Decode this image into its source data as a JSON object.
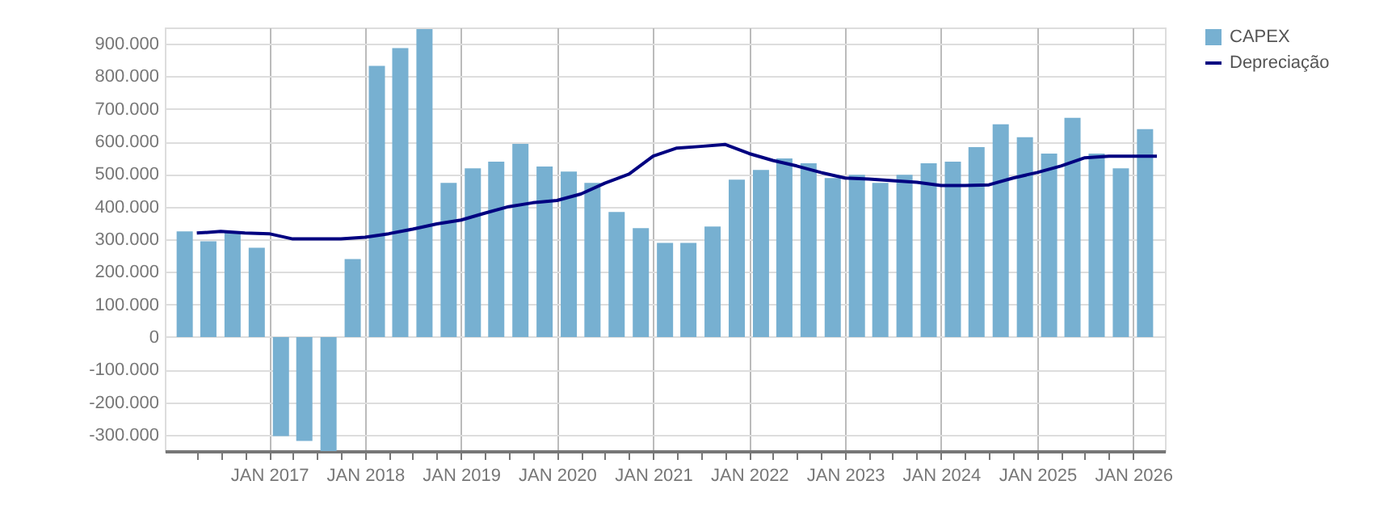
{
  "chart_data": {
    "type": "bar",
    "x": [
      "2016-02-15",
      "2016-05-15",
      "2016-08-15",
      "2016-11-15",
      "2017-02-15",
      "2017-05-15",
      "2017-08-15",
      "2017-11-15",
      "2018-02-15",
      "2018-05-15",
      "2018-08-15",
      "2018-11-15",
      "2019-02-15",
      "2019-05-15",
      "2019-08-15",
      "2019-11-15",
      "2020-02-15",
      "2020-05-15",
      "2020-08-15",
      "2020-11-15",
      "2021-02-15",
      "2021-05-15",
      "2021-08-15",
      "2021-11-15",
      "2022-02-15",
      "2022-05-15",
      "2022-08-15",
      "2022-11-15",
      "2023-02-15",
      "2023-05-15",
      "2023-08-15",
      "2023-11-15",
      "2024-02-15",
      "2024-05-15",
      "2024-08-15",
      "2024-11-15",
      "2025-02-15",
      "2025-05-15",
      "2025-08-15",
      "2025-11-15",
      "2026-02-15"
    ],
    "series": [
      {
        "name": "CAPEX",
        "color": "#77b0d1",
        "values": [
          324000,
          294000,
          325000,
          274000,
          -304000,
          -319000,
          -350000,
          239000,
          832000,
          887000,
          945000,
          473000,
          518000,
          538000,
          593000,
          523000,
          508000,
          473000,
          384000,
          334000,
          289000,
          289000,
          339000,
          483000,
          513000,
          548000,
          533000,
          488000,
          498000,
          473000,
          498000,
          533000,
          538000,
          583000,
          653000,
          613000,
          563000,
          673000,
          563000,
          518000,
          638000
        ]
      },
      {
        "name": "Depreciação",
        "type": "line",
        "color": "#000080",
        "x": [
          "2016-04-01",
          "2016-07-01",
          "2016-10-01",
          "2017-01-01",
          "2017-04-01",
          "2017-07-01",
          "2017-10-01",
          "2018-01-01",
          "2018-04-01",
          "2018-07-01",
          "2018-10-01",
          "2019-01-01",
          "2019-04-01",
          "2019-07-01",
          "2019-10-01",
          "2020-01-01",
          "2020-04-01",
          "2020-07-01",
          "2020-10-01",
          "2021-01-01",
          "2021-04-01",
          "2021-07-01",
          "2021-10-01",
          "2022-01-01",
          "2022-04-01",
          "2022-07-01",
          "2022-10-01",
          "2023-01-01",
          "2023-04-01",
          "2023-07-01",
          "2023-10-01",
          "2024-01-01",
          "2024-04-01",
          "2024-07-01",
          "2024-10-01",
          "2025-01-01",
          "2025-04-01",
          "2025-07-01",
          "2025-10-01",
          "2026-01-01",
          "2026-04-01"
        ],
        "values": [
          319000,
          324000,
          319000,
          317000,
          301000,
          301000,
          301000,
          306000,
          317000,
          331000,
          347000,
          359000,
          380000,
          400000,
          412000,
          419000,
          439000,
          472000,
          500000,
          555000,
          580000,
          585000,
          591000,
          563000,
          542000,
          525000,
          505000,
          488000,
          485000,
          480000,
          475000,
          465000,
          465000,
          467000,
          488000,
          505000,
          525000,
          550000,
          555000,
          555000,
          555000
        ]
      }
    ],
    "xlim": [
      "2016-01-01",
      "2026-04-01"
    ],
    "xticks": [
      {
        "value": "2016-04-01",
        "label": null
      },
      {
        "value": "2016-07-01",
        "label": null
      },
      {
        "value": "2016-10-01",
        "label": null
      },
      {
        "value": "2017-01-01",
        "label": "JAN\n2017"
      },
      {
        "value": "2017-04-01",
        "label": null
      },
      {
        "value": "2017-07-01",
        "label": null
      },
      {
        "value": "2017-10-01",
        "label": null
      },
      {
        "value": "2018-01-01",
        "label": "JAN\n2018"
      },
      {
        "value": "2018-04-01",
        "label": null
      },
      {
        "value": "2018-07-01",
        "label": null
      },
      {
        "value": "2018-10-01",
        "label": null
      },
      {
        "value": "2019-01-01",
        "label": "JAN\n2019"
      },
      {
        "value": "2019-04-01",
        "label": null
      },
      {
        "value": "2019-07-01",
        "label": null
      },
      {
        "value": "2019-10-01",
        "label": null
      },
      {
        "value": "2020-01-01",
        "label": "JAN\n2020"
      },
      {
        "value": "2020-04-01",
        "label": null
      },
      {
        "value": "2020-07-01",
        "label": null
      },
      {
        "value": "2020-10-01",
        "label": null
      },
      {
        "value": "2021-01-01",
        "label": "JAN\n2021"
      },
      {
        "value": "2021-04-01",
        "label": null
      },
      {
        "value": "2021-07-01",
        "label": null
      },
      {
        "value": "2021-10-01",
        "label": null
      },
      {
        "value": "2022-01-01",
        "label": "JAN\n2022"
      },
      {
        "value": "2022-04-01",
        "label": null
      },
      {
        "value": "2022-07-01",
        "label": null
      },
      {
        "value": "2022-10-01",
        "label": null
      },
      {
        "value": "2023-01-01",
        "label": "JAN\n2023"
      },
      {
        "value": "2023-04-01",
        "label": null
      },
      {
        "value": "2023-07-01",
        "label": null
      },
      {
        "value": "2023-10-01",
        "label": null
      },
      {
        "value": "2024-01-01",
        "label": "JAN\n2024"
      },
      {
        "value": "2024-04-01",
        "label": null
      },
      {
        "value": "2024-07-01",
        "label": null
      },
      {
        "value": "2024-10-01",
        "label": null
      },
      {
        "value": "2025-01-01",
        "label": "JAN\n2025"
      },
      {
        "value": "2025-04-01",
        "label": null
      },
      {
        "value": "2025-07-01",
        "label": null
      },
      {
        "value": "2025-10-01",
        "label": null
      },
      {
        "value": "2026-01-01",
        "label": "JAN\n2026"
      }
    ],
    "ylim": [
      -350000,
      950000
    ],
    "yticks": [
      {
        "value": -300000,
        "label": "-300.000"
      },
      {
        "value": -200000,
        "label": "-200.000"
      },
      {
        "value": -100000,
        "label": "-100.000"
      },
      {
        "value": 0,
        "label": "0"
      },
      {
        "value": 100000,
        "label": "100.000"
      },
      {
        "value": 200000,
        "label": "200.000"
      },
      {
        "value": 300000,
        "label": "300.000"
      },
      {
        "value": 400000,
        "label": "400.000"
      },
      {
        "value": 500000,
        "label": "500.000"
      },
      {
        "value": 600000,
        "label": "600.000"
      },
      {
        "value": 700000,
        "label": "700.000"
      },
      {
        "value": 800000,
        "label": "800.000"
      },
      {
        "value": 900000,
        "label": "900.000"
      }
    ],
    "grid": true,
    "legend": "top right"
  }
}
